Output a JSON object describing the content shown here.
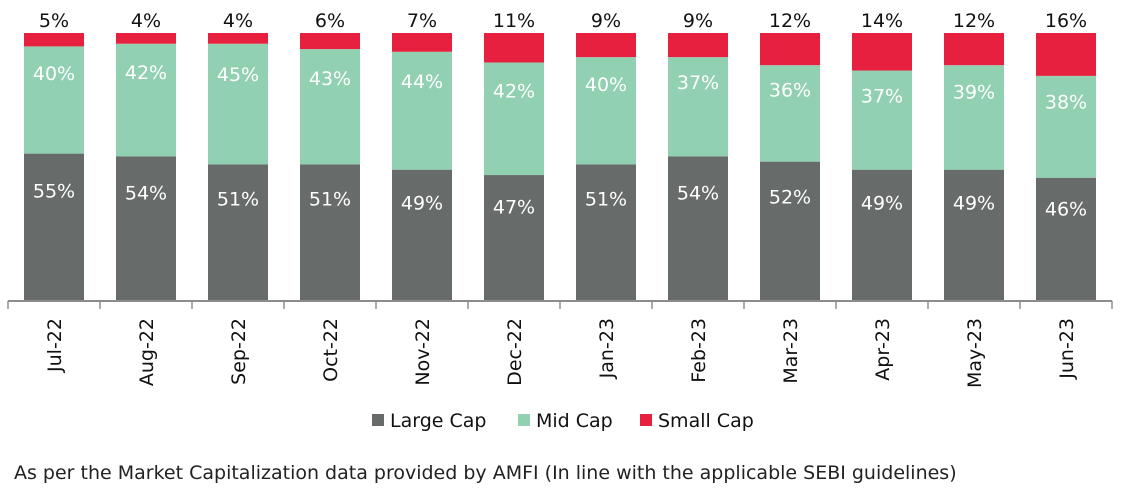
{
  "chart_data": {
    "type": "bar",
    "stacked": true,
    "categories": [
      "Jul-22",
      "Aug-22",
      "Sep-22",
      "Oct-22",
      "Nov-22",
      "Dec-22",
      "Jan-23",
      "Feb-23",
      "Mar-23",
      "Apr-23",
      "May-23",
      "Jun-23"
    ],
    "series": [
      {
        "name": "Large Cap",
        "color": "#676b6a",
        "values": [
          55,
          54,
          51,
          51,
          49,
          47,
          51,
          54,
          52,
          49,
          49,
          46
        ]
      },
      {
        "name": "Mid Cap",
        "color": "#92d0b2",
        "values": [
          40,
          42,
          45,
          43,
          44,
          42,
          40,
          37,
          36,
          37,
          39,
          38
        ]
      },
      {
        "name": "Small Cap",
        "color": "#e8203f",
        "values": [
          5,
          4,
          4,
          6,
          7,
          11,
          9,
          9,
          12,
          14,
          12,
          16
        ]
      }
    ],
    "value_labels": [
      [
        "55%",
        "54%",
        "51%",
        "51%",
        "49%",
        "47%",
        "51%",
        "54%",
        "52%",
        "49%",
        "49%",
        "46%"
      ],
      [
        "40%",
        "42%",
        "45%",
        "43%",
        "44%",
        "42%",
        "40%",
        "37%",
        "36%",
        "37%",
        "39%",
        "38%"
      ],
      [
        "5%",
        "4%",
        "4%",
        "6%",
        "7%",
        "11%",
        "9%",
        "9%",
        "12%",
        "14%",
        "12%",
        "16%"
      ]
    ],
    "ylim": [
      0,
      100
    ],
    "grid": false,
    "legend_position": "bottom"
  },
  "footnote": "As per the Market Capitalization data provided by AMFI (In line with the applicable SEBI guidelines)"
}
